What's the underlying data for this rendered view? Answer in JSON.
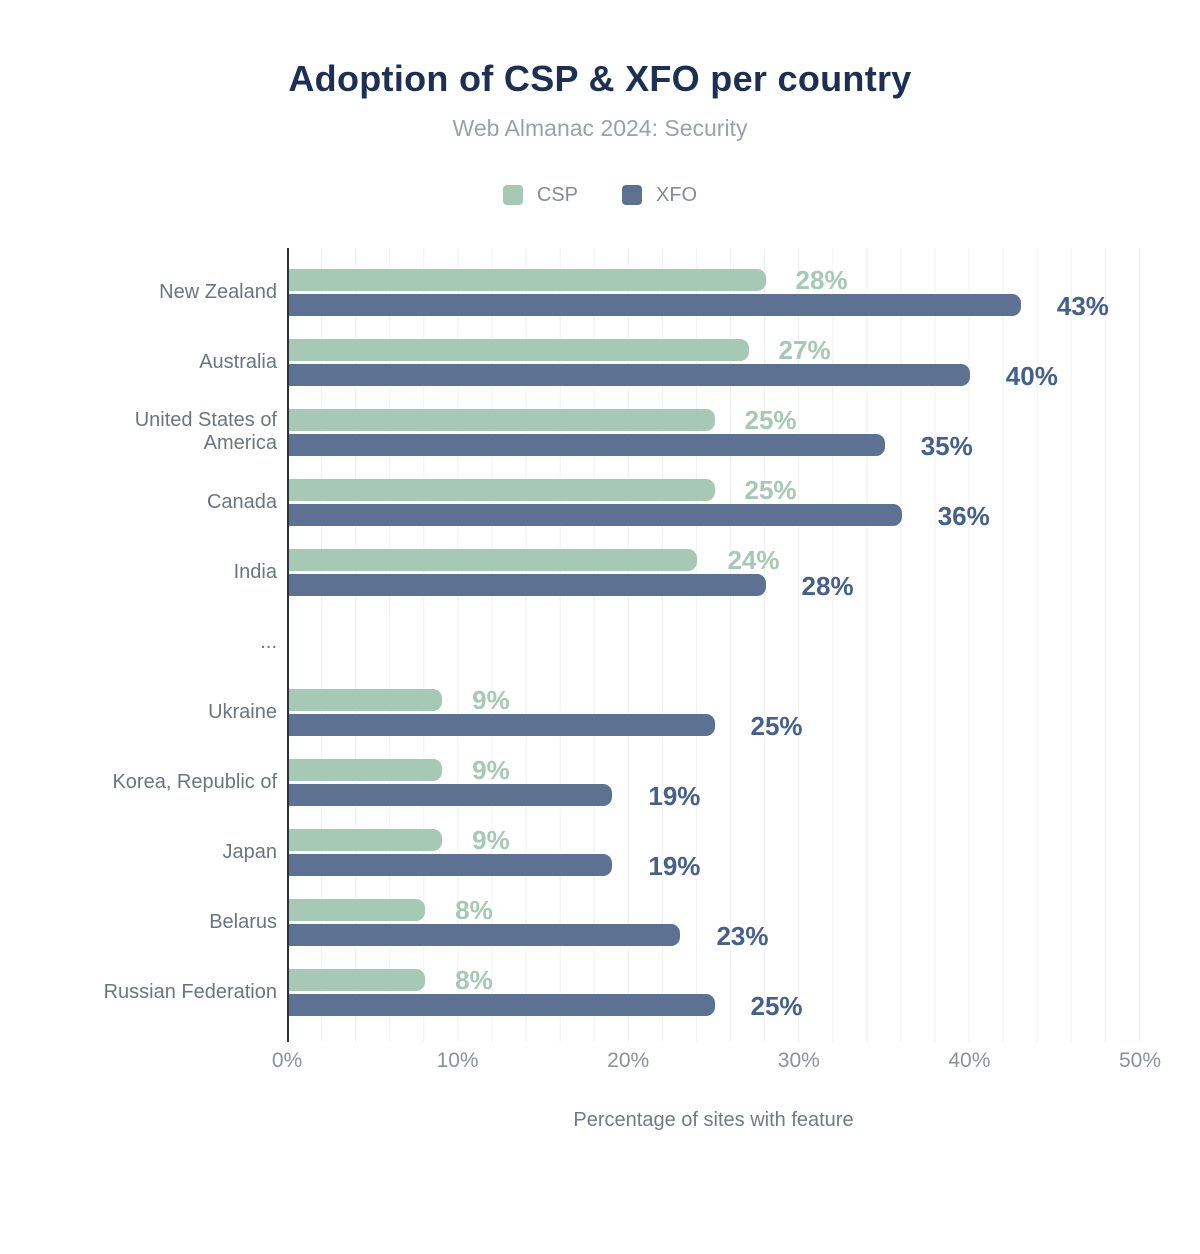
{
  "header": {
    "title": "Adoption of CSP & XFO per country",
    "subtitle": "Web Almanac 2024: Security"
  },
  "chart_data": {
    "type": "bar",
    "orientation": "horizontal",
    "title": "Adoption of CSP & XFO per country",
    "subtitle": "Web Almanac 2024: Security",
    "xlabel": "Percentage of sites with feature",
    "xlim": [
      0,
      50
    ],
    "xticks": [
      "0%",
      "10%",
      "20%",
      "30%",
      "40%",
      "50%"
    ],
    "grid": "vertical minor gridlines every 2%",
    "legend_position": "top-center",
    "categories": [
      "New Zealand",
      "Australia",
      "United States of America",
      "Canada",
      "India",
      "...",
      "Ukraine",
      "Korea, Republic of",
      "Japan",
      "Belarus",
      "Russian Federation"
    ],
    "series": [
      {
        "name": "CSP",
        "color": "#a6c9b5",
        "label_color": "#a6c9b5",
        "values": [
          28,
          27,
          25,
          25,
          24,
          null,
          9,
          9,
          9,
          8,
          8
        ]
      },
      {
        "name": "XFO",
        "color": "#5d7192",
        "label_color": "#45608a",
        "values": [
          43,
          40,
          35,
          36,
          28,
          null,
          25,
          19,
          19,
          23,
          25
        ]
      }
    ]
  },
  "colors": {
    "background": "#ffffff",
    "title": "#1d3053",
    "subtitle": "#9aa1a9",
    "axis_line": "#2d3238",
    "gridline": "#f0f1f0",
    "tick_label": "#8b9299",
    "category_label": "#6b7580",
    "axis_title": "#707b84",
    "legend_label": "#868c93"
  }
}
